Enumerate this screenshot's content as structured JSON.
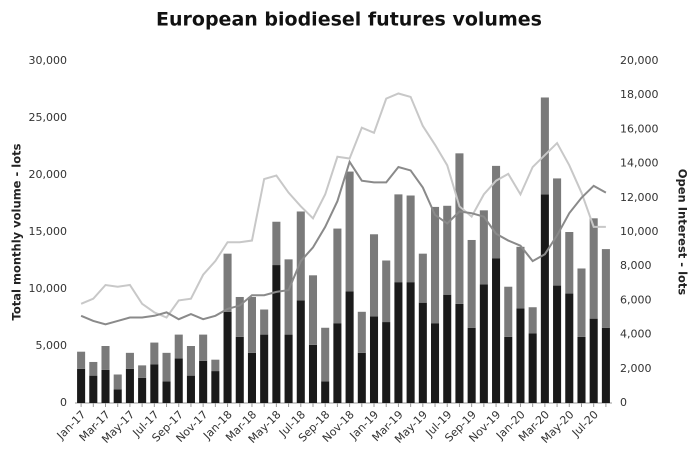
{
  "chart_data": {
    "type": "bar_line",
    "title": "European biodiesel futures volumes",
    "y_label": "Total monthly volume - lots",
    "y2_label": "Open Interest - lots",
    "categories": [
      "Jan-17",
      null,
      "Mar-17",
      null,
      "May-17",
      null,
      "Jul-17",
      null,
      "Sep-17",
      null,
      "Nov-17",
      null,
      "Jan-18",
      null,
      "Mar-18",
      null,
      "May-18",
      null,
      "Jul-18",
      null,
      "Sep-18",
      null,
      "Nov-18",
      null,
      "Jan-19",
      null,
      "Mar-19",
      null,
      "May-19",
      null,
      "Jul-19",
      null,
      "Sep-19",
      null,
      "Nov-19",
      null,
      "Jan-20",
      null,
      "Mar-20",
      null,
      "May-20",
      null,
      "Jul-20",
      null
    ],
    "series": [
      {
        "kind": "bar",
        "color": "#1a1a1a",
        "values": [
          3000,
          2400,
          2900,
          1200,
          3000,
          2200,
          3400,
          1900,
          3900,
          2400,
          3700,
          2800,
          8000,
          5800,
          4400,
          6000,
          12100,
          6000,
          9000,
          5100,
          1900,
          7000,
          9800,
          4400,
          7600,
          7100,
          10600,
          10600,
          8800,
          7000,
          9500,
          8700,
          6600,
          10400,
          12700,
          5800,
          8300,
          6100,
          18300,
          10300,
          9600,
          5800,
          7400,
          6600
        ]
      },
      {
        "kind": "bar",
        "color": "#7a7a7a",
        "values": [
          1500,
          1200,
          2100,
          1300,
          1400,
          1100,
          1900,
          2500,
          2100,
          2600,
          2300,
          1000,
          5100,
          3500,
          4900,
          2200,
          3800,
          6600,
          7800,
          6100,
          4700,
          8300,
          10500,
          3600,
          7200,
          5400,
          7700,
          7600,
          4300,
          10200,
          7800,
          13200,
          7700,
          6500,
          8100,
          4400,
          5400,
          2300,
          8500,
          9400,
          5400,
          6000,
          8800,
          6900
        ]
      },
      {
        "kind": "line",
        "axis": "y2",
        "color": "#c8c8c8",
        "values": [
          5800,
          6100,
          6900,
          6800,
          6900,
          5800,
          5300,
          5000,
          6000,
          6100,
          7500,
          8300,
          9400,
          9400,
          9500,
          13100,
          13300,
          12300,
          11500,
          10800,
          12200,
          14400,
          14300,
          16100,
          15800,
          17800,
          18100,
          17900,
          16200,
          15100,
          13900,
          11500,
          10900,
          12200,
          13000,
          13400,
          12200,
          13800,
          14500,
          15200,
          13900,
          12300,
          10300,
          10300
        ]
      },
      {
        "kind": "line",
        "axis": "y2",
        "color": "#8a8a8a",
        "values": [
          5100,
          4800,
          4600,
          4800,
          5000,
          5000,
          5100,
          5300,
          4900,
          5200,
          4900,
          5100,
          5500,
          5700,
          6300,
          6300,
          6500,
          6600,
          8300,
          9100,
          10300,
          11800,
          14100,
          13000,
          12900,
          12900,
          13800,
          13600,
          12600,
          11000,
          10500,
          11200,
          11100,
          10900,
          9900,
          9500,
          9200,
          8300,
          8700,
          9800,
          11100,
          12000,
          12700,
          12300
        ]
      }
    ],
    "ylim": [
      0,
      30000
    ],
    "yticks": [
      0,
      {
        "value": 5000,
        "label": "5,000"
      },
      {
        "value": 10000,
        "label": "10,000"
      },
      {
        "value": 15000,
        "label": "15,000"
      },
      {
        "value": 20000,
        "label": "20,000"
      },
      {
        "value": 25000,
        "label": "25,000"
      },
      {
        "value": 30000,
        "label": "30,000"
      }
    ],
    "y2lim": [
      0,
      20000
    ],
    "y2ticks": [
      0,
      {
        "value": 2000,
        "label": "2,000"
      },
      {
        "value": 4000,
        "label": "4,000"
      },
      {
        "value": 6000,
        "label": "6,000"
      },
      {
        "value": 8000,
        "label": "8,000"
      },
      {
        "value": 10000,
        "label": "10,000"
      },
      {
        "value": 12000,
        "label": "12,000"
      },
      {
        "value": 14000,
        "label": "14,000"
      },
      {
        "value": 16000,
        "label": "16,000"
      },
      {
        "value": 18000,
        "label": "18,000"
      },
      {
        "value": 20000,
        "label": "20,000"
      }
    ],
    "grid": false
  }
}
